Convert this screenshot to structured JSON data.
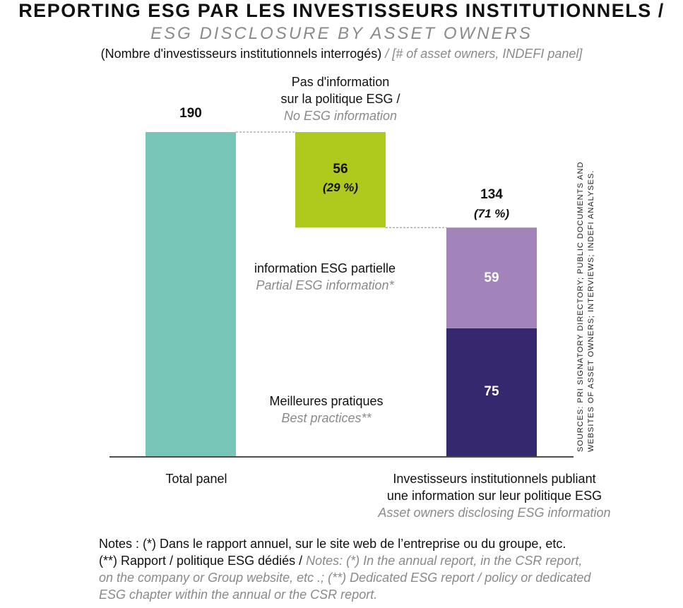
{
  "header": {
    "title": "REPORTING ESG PAR LES INVESTISSEURS INSTITUTIONNELS /",
    "subtitle": "ESG DISCLOSURE BY ASSET OWNERS",
    "unit_fr": "(Nombre d'investisseurs institutionnels interrogés)",
    "unit_en": "/ [# of asset owners, INDEFI panel]"
  },
  "colors": {
    "total": "#77c6b8",
    "no_info": "#afc91c",
    "partial": "#a284bb",
    "best": "#35286e"
  },
  "chart_data": {
    "type": "bar",
    "subtype": "waterfall",
    "categories": [
      "Total panel",
      "Investisseurs institutionnels publiant une information sur leur politique ESG"
    ],
    "ylim": [
      0,
      190
    ],
    "grid": false,
    "bars": [
      {
        "name": "Total panel",
        "value": 190,
        "label": "190"
      },
      {
        "name": "Pas d'information sur la politique ESG / No ESG information",
        "value": 56,
        "label": "56",
        "pct": "(29 %)"
      },
      {
        "name": "Investisseurs institutionnels publiant",
        "value": 134,
        "label": "134",
        "pct": "(71 %)",
        "stack": [
          {
            "name": "Meilleures pratiques / Best practices**",
            "value": 75,
            "label": "75"
          },
          {
            "name": "information ESG partielle / Partial ESG information*",
            "value": 59,
            "label": "59"
          }
        ]
      }
    ],
    "annotations": {
      "no_info_line1": "Pas d'information",
      "no_info_line2": "sur la politique ESG /",
      "no_info_en": "No ESG information",
      "partial_fr": "information ESG partielle",
      "partial_en": "Partial ESG information*",
      "best_fr": "Meilleures pratiques",
      "best_en": "Best practices**"
    },
    "xlabels": {
      "total": "Total panel",
      "disclosing_line1": "Investisseurs institutionnels publiant",
      "disclosing_line2": "une information sur leur politique ESG",
      "disclosing_en": "Asset owners disclosing ESG information"
    }
  },
  "notes": {
    "line1": "Notes : (*) Dans le rapport annuel, sur le site web de l’entreprise ou du groupe, etc.",
    "line2_fr": " (**) Rapport / politique ESG dédiés / ",
    "line2_en": "Notes: (*) In the annual report, in the CSR report,",
    "line3": "on the company or Group website, etc .; (**) Dedicated ESG report / policy or dedicated",
    "line4": "ESG chapter within the annual or the CSR report."
  },
  "source": {
    "line1": "SOURCES: PRI SIGNATORY DIRECTORY; PUBLIC DOCUMENTS AND",
    "line2": "WEBSITES OF ASSET OWNERS; INTERVIEWS; INDEFI ANALYSES."
  }
}
